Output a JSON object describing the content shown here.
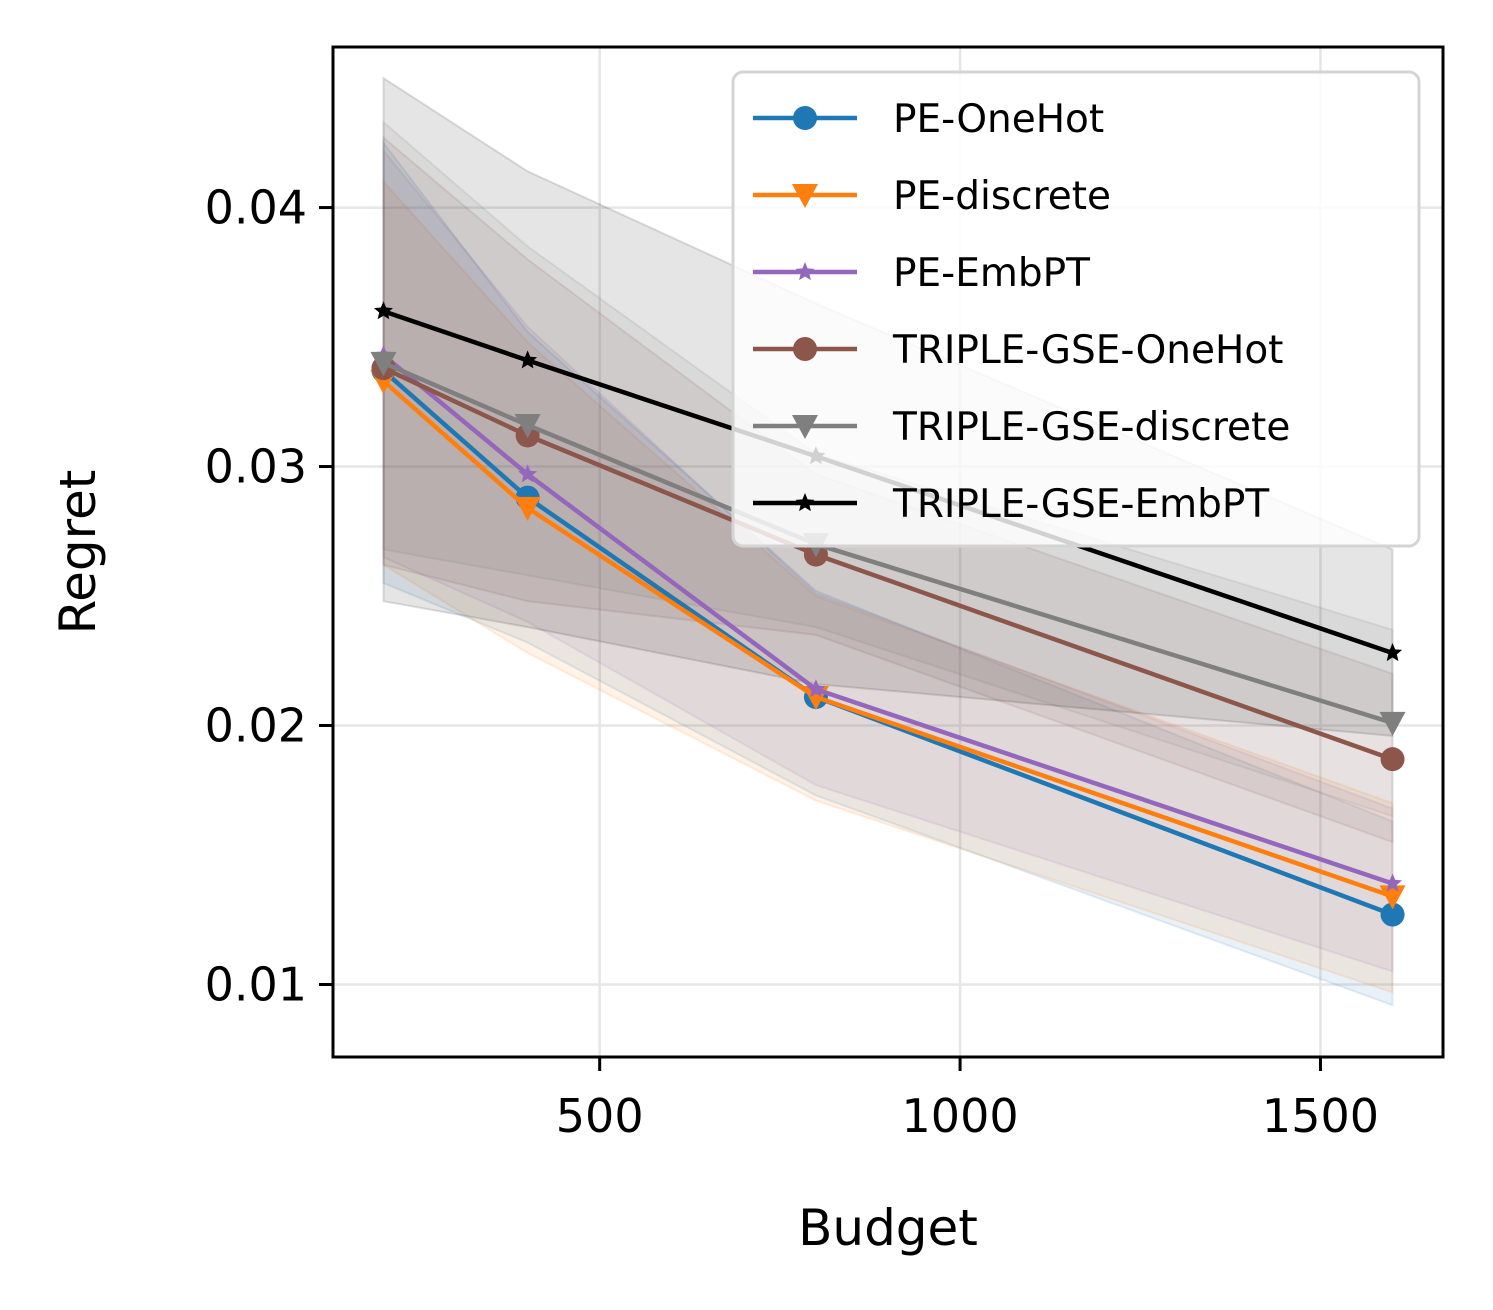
{
  "chart_data": {
    "type": "line",
    "title": "",
    "xlabel": "Budget",
    "ylabel": "Regret",
    "xlim": [
      130,
      1670
    ],
    "ylim": [
      0.0072,
      0.0462
    ],
    "xticks": [
      500,
      1000,
      1500
    ],
    "xtick_labels": [
      "500",
      "1000",
      "1500"
    ],
    "yticks": [
      0.01,
      0.02,
      0.03,
      0.04
    ],
    "ytick_labels": [
      "0.01",
      "0.02",
      "0.03",
      "0.04"
    ],
    "grid": true,
    "legend_position": "upper-right",
    "x": [
      200,
      400,
      800,
      1600
    ],
    "series": [
      {
        "name": "PE-OneHot",
        "color": "#1f77b4",
        "marker": "circle",
        "values": [
          0.0337,
          0.0288,
          0.0211,
          0.0127
        ],
        "band_lower": [
          0.0255,
          0.0232,
          0.0173,
          0.0092
        ],
        "band_upper": [
          0.0425,
          0.0352,
          0.0252,
          0.0163
        ]
      },
      {
        "name": "PE-discrete",
        "color": "#ff7f0e",
        "marker": "triangle-down",
        "values": [
          0.0333,
          0.0284,
          0.0211,
          0.0134
        ],
        "band_lower": [
          0.0262,
          0.0228,
          0.0171,
          0.0097
        ],
        "band_upper": [
          0.041,
          0.0348,
          0.025,
          0.017
        ]
      },
      {
        "name": "PE-EmbPT",
        "color": "#9467bd",
        "marker": "star",
        "values": [
          0.0343,
          0.0297,
          0.0214,
          0.0139
        ],
        "band_lower": [
          0.0265,
          0.024,
          0.0177,
          0.0105
        ],
        "band_upper": [
          0.0422,
          0.0354,
          0.0251,
          0.0168
        ]
      },
      {
        "name": "TRIPLE-GSE-OneHot",
        "color": "#8c564b",
        "marker": "circle",
        "values": [
          0.0338,
          0.0312,
          0.0266,
          0.0187
        ],
        "band_lower": [
          0.0262,
          0.0248,
          0.0235,
          0.0155
        ],
        "band_upper": [
          0.0427,
          0.038,
          0.0297,
          0.022
        ]
      },
      {
        "name": "TRIPLE-GSE-discrete",
        "color": "#7f7f7f",
        "marker": "triangle-down",
        "values": [
          0.034,
          0.0316,
          0.027,
          0.0201
        ],
        "band_lower": [
          0.0268,
          0.0258,
          0.0238,
          0.0165
        ],
        "band_upper": [
          0.0433,
          0.0385,
          0.0305,
          0.0237
        ]
      },
      {
        "name": "TRIPLE-GSE-EmbPT",
        "color": "#000000",
        "marker": "star",
        "values": [
          0.036,
          0.0341,
          0.0304,
          0.0228
        ],
        "band_lower": [
          0.0248,
          0.0238,
          0.0216,
          0.0196
        ],
        "band_upper": [
          0.045,
          0.0414,
          0.0363,
          0.0268
        ]
      }
    ]
  }
}
